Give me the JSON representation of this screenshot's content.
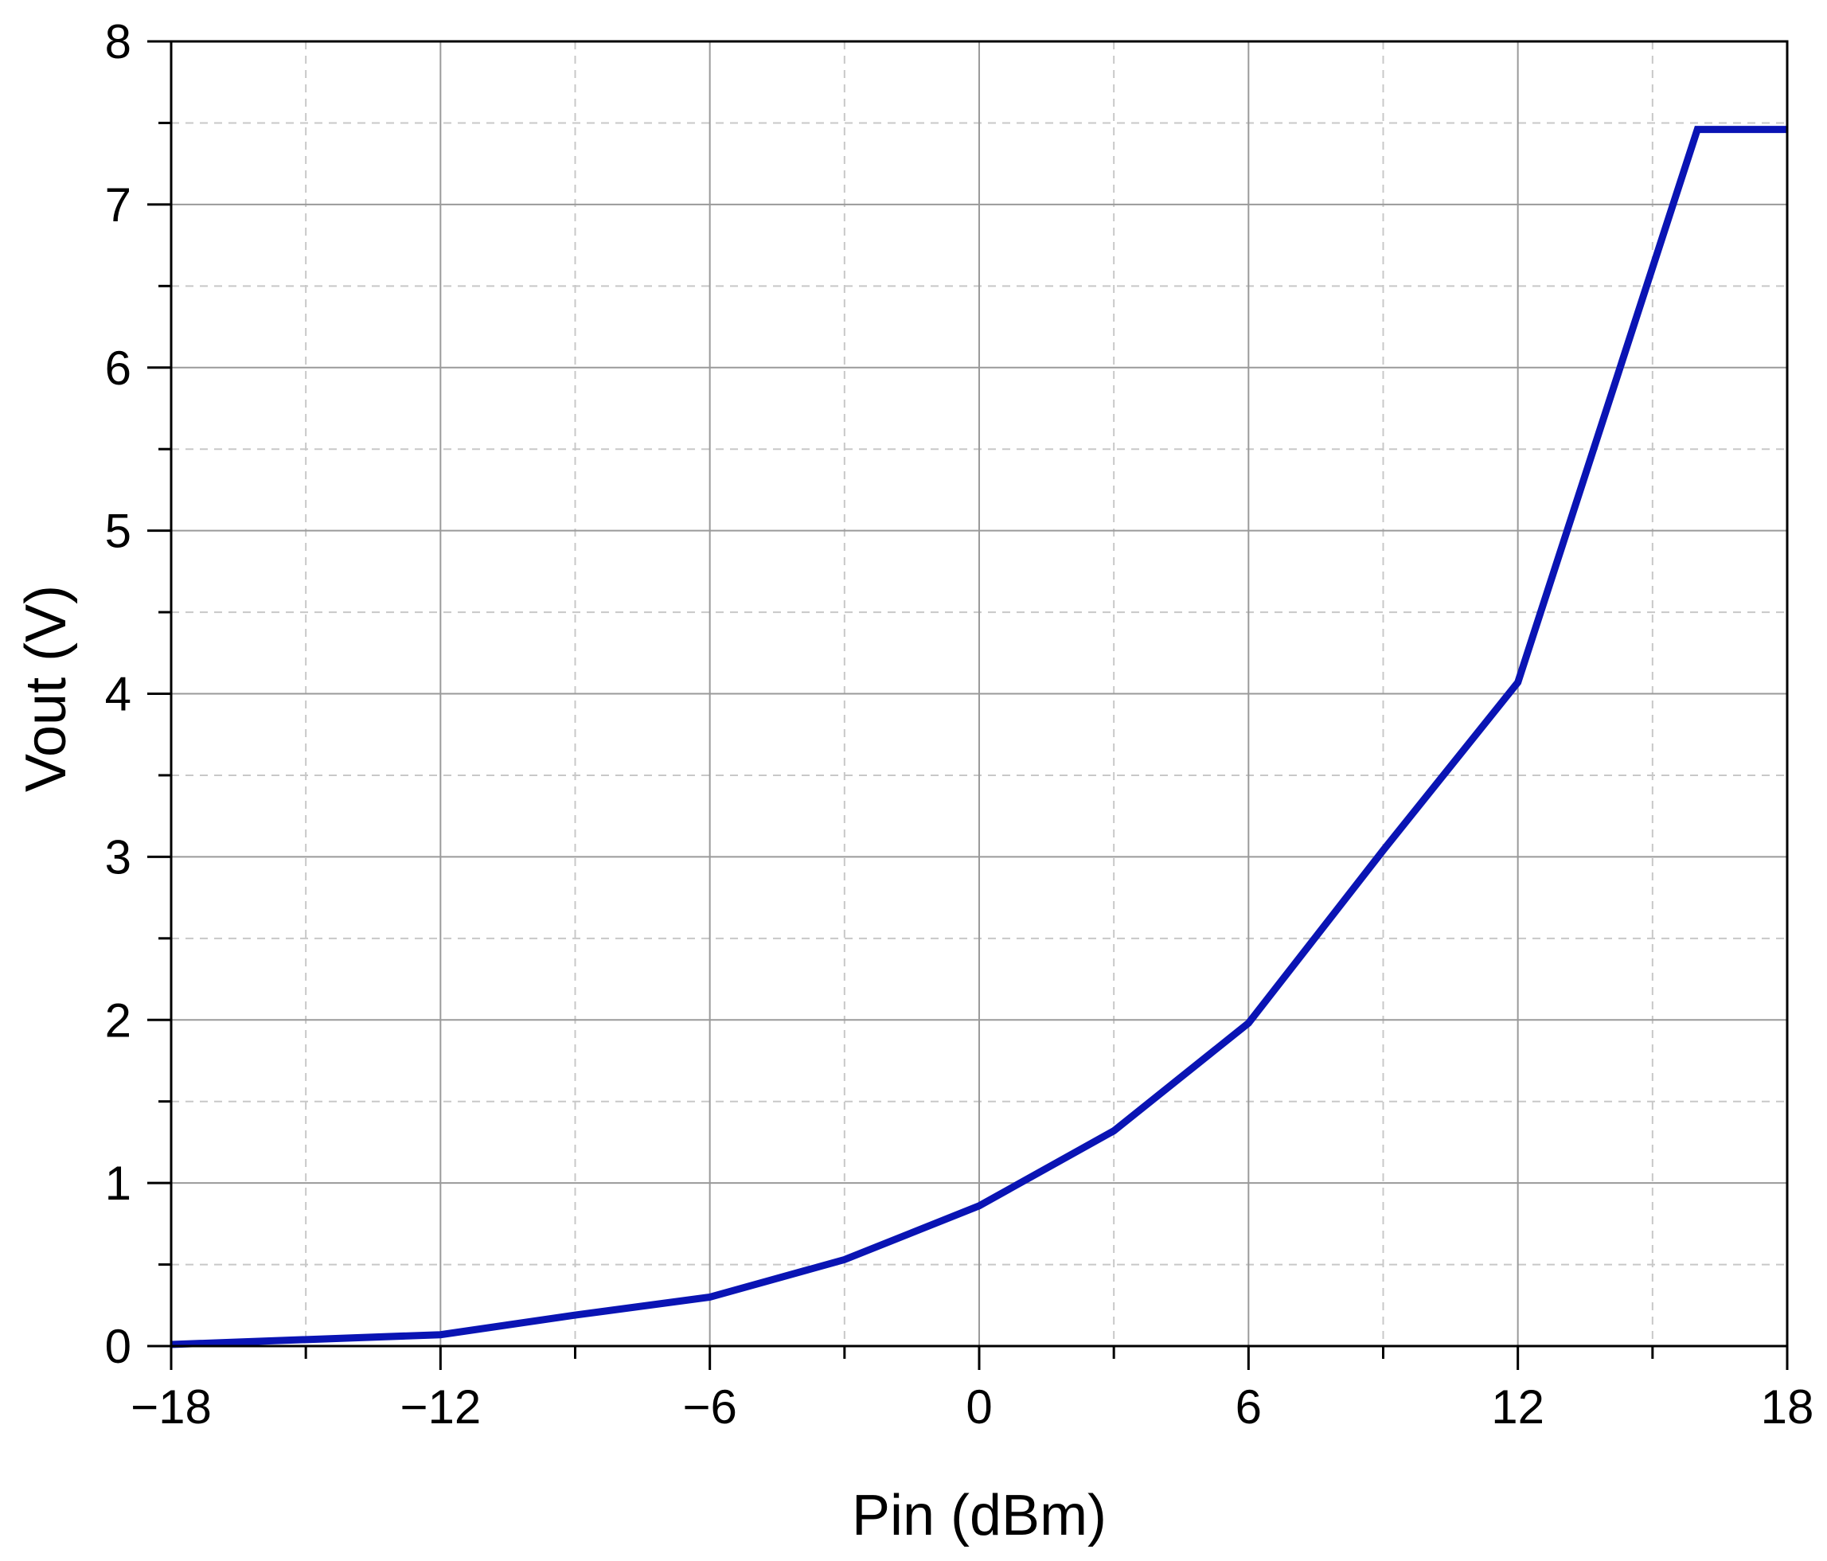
{
  "chart_data": {
    "type": "line",
    "xlabel": "Pin (dBm)",
    "ylabel": "Vout (V)",
    "xlim": [
      -18,
      18
    ],
    "ylim": [
      0,
      8
    ],
    "x_ticks": [
      -18,
      -12,
      -6,
      0,
      6,
      12,
      18
    ],
    "x_tick_labels": [
      "−18",
      "−12",
      "−6",
      "0",
      "6",
      "12",
      "18"
    ],
    "y_ticks": [
      0,
      1,
      2,
      3,
      4,
      5,
      6,
      7,
      8
    ],
    "y_tick_labels": [
      "0",
      "1",
      "2",
      "3",
      "4",
      "5",
      "6",
      "7",
      "8"
    ],
    "grid": true,
    "minor_grid": true,
    "series": [
      {
        "color": "#0a14b4",
        "x": [
          -18,
          -12,
          -9,
          -6,
          -3,
          0,
          3,
          6,
          9,
          12,
          16,
          18
        ],
        "y": [
          0.01,
          0.07,
          0.19,
          0.3,
          0.53,
          0.86,
          1.32,
          1.98,
          3.04,
          4.07,
          7.46,
          7.46
        ]
      }
    ]
  }
}
